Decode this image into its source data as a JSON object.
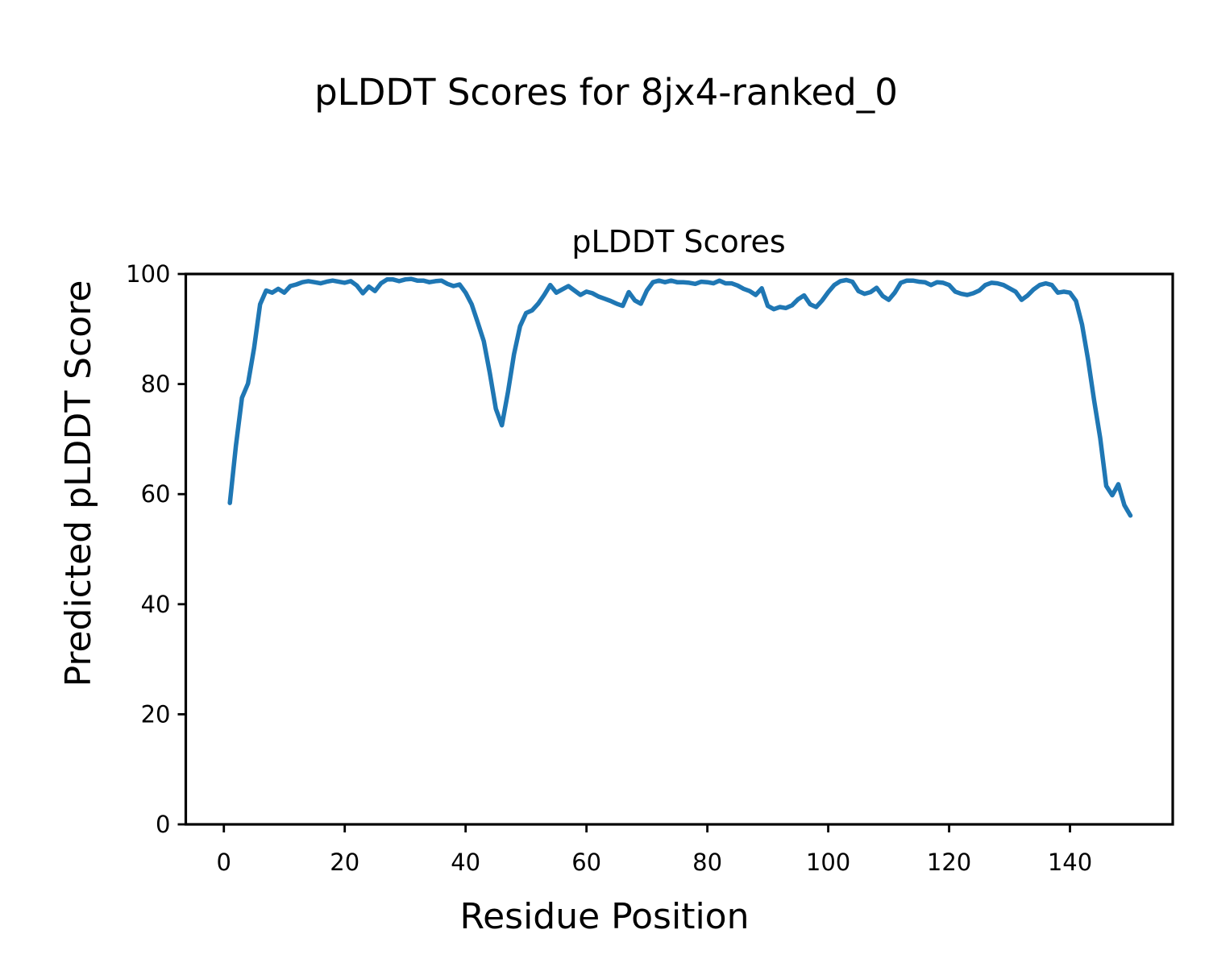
{
  "figure": {
    "background": "#ffffff",
    "text_color": "#000000"
  },
  "chart_data": {
    "type": "line",
    "suptitle": "pLDDT Scores for 8jx4-ranked_0",
    "title": "pLDDT Scores",
    "xlabel": "Residue Position",
    "ylabel": "Predicted pLDDT Score",
    "line_color": "#1f77b4",
    "grid": false,
    "legend_position": "none",
    "xlim": [
      -6.3,
      157.0
    ],
    "ylim": [
      0,
      100
    ],
    "xticks": [
      0,
      20,
      40,
      60,
      80,
      100,
      120,
      140
    ],
    "yticks": [
      0,
      20,
      40,
      60,
      80,
      100
    ],
    "x": [
      1,
      2,
      3,
      4,
      5,
      6,
      7,
      8,
      9,
      10,
      11,
      12,
      13,
      14,
      15,
      16,
      17,
      18,
      19,
      20,
      21,
      22,
      23,
      24,
      25,
      26,
      27,
      28,
      29,
      30,
      31,
      32,
      33,
      34,
      35,
      36,
      37,
      38,
      39,
      40,
      41,
      42,
      43,
      44,
      45,
      46,
      47,
      48,
      49,
      50,
      51,
      52,
      53,
      54,
      55,
      56,
      57,
      58,
      59,
      60,
      61,
      62,
      63,
      64,
      65,
      66,
      67,
      68,
      69,
      70,
      71,
      72,
      73,
      74,
      75,
      76,
      77,
      78,
      79,
      80,
      81,
      82,
      83,
      84,
      85,
      86,
      87,
      88,
      89,
      90,
      91,
      92,
      93,
      94,
      95,
      96,
      97,
      98,
      99,
      100,
      101,
      102,
      103,
      104,
      105,
      106,
      107,
      108,
      109,
      110,
      111,
      112,
      113,
      114,
      115,
      116,
      117,
      118,
      119,
      120,
      121,
      122,
      123,
      124,
      125,
      126,
      127,
      128,
      129,
      130,
      131,
      132,
      133,
      134,
      135,
      136,
      137,
      138,
      139,
      140,
      141,
      142,
      143,
      144,
      145,
      146,
      147,
      148,
      149,
      150
    ],
    "y": [
      58.4,
      68.8,
      77.5,
      80.1,
      86.5,
      94.5,
      97.0,
      96.6,
      97.3,
      96.6,
      97.8,
      98.1,
      98.5,
      98.7,
      98.5,
      98.3,
      98.6,
      98.8,
      98.6,
      98.4,
      98.7,
      97.9,
      96.5,
      97.7,
      96.9,
      98.3,
      99.0,
      99.0,
      98.7,
      99.0,
      99.1,
      98.8,
      98.8,
      98.5,
      98.7,
      98.8,
      98.2,
      97.8,
      98.1,
      96.6,
      94.5,
      91.2,
      87.8,
      82.0,
      75.5,
      72.5,
      78.5,
      85.4,
      90.5,
      92.9,
      93.4,
      94.6,
      96.2,
      98.0,
      96.6,
      97.2,
      97.8,
      97.0,
      96.2,
      96.8,
      96.5,
      95.9,
      95.5,
      95.1,
      94.6,
      94.2,
      96.7,
      95.2,
      94.6,
      97.0,
      98.5,
      98.8,
      98.5,
      98.8,
      98.5,
      98.5,
      98.4,
      98.2,
      98.6,
      98.5,
      98.3,
      98.8,
      98.3,
      98.3,
      97.9,
      97.3,
      96.9,
      96.2,
      97.4,
      94.2,
      93.6,
      94.0,
      93.8,
      94.3,
      95.4,
      96.1,
      94.5,
      94.0,
      95.2,
      96.7,
      98.0,
      98.7,
      98.9,
      98.6,
      96.9,
      96.4,
      96.7,
      97.5,
      96.0,
      95.3,
      96.6,
      98.4,
      98.8,
      98.8,
      98.6,
      98.5,
      98.0,
      98.5,
      98.4,
      98.0,
      96.8,
      96.4,
      96.2,
      96.5,
      97.0,
      98.0,
      98.4,
      98.3,
      98.0,
      97.4,
      96.8,
      95.3,
      96.1,
      97.2,
      98.0,
      98.3,
      98.0,
      96.6,
      96.8,
      96.6,
      95.1,
      90.8,
      84.4,
      77.0,
      70.2,
      61.5,
      59.8,
      61.8,
      58.0,
      56.1
    ]
  }
}
